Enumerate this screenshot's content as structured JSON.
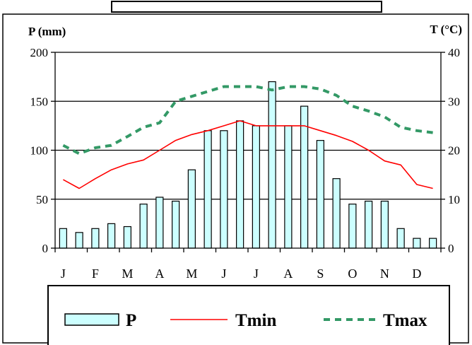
{
  "title_bar": "",
  "chart_data": {
    "type": "bar+line",
    "categories": [
      "J",
      "",
      "F",
      "",
      "M",
      "",
      "A",
      "",
      "M",
      "",
      "J",
      "",
      "J",
      "",
      "A",
      "",
      "S",
      "",
      "O",
      "",
      "N",
      "",
      "D",
      ""
    ],
    "x_tick_labels": [
      "J",
      "F",
      "M",
      "A",
      "M",
      "J",
      "J",
      "A",
      "S",
      "O",
      "N",
      "D"
    ],
    "left_axis": {
      "label": "P (mm)",
      "ylim": [
        0,
        200
      ],
      "ticks": [
        0,
        50,
        100,
        150,
        200
      ]
    },
    "right_axis": {
      "label": "T (°C)",
      "ylim": [
        0,
        40
      ],
      "ticks": [
        0,
        10,
        20,
        30,
        40
      ]
    },
    "grid": "horizontal",
    "series": [
      {
        "name": "P",
        "type": "bar",
        "axis": "left",
        "color": "#ccffff",
        "values": [
          20,
          16,
          20,
          25,
          22,
          45,
          52,
          48,
          80,
          120,
          120,
          130,
          125,
          170,
          125,
          145,
          110,
          71,
          45,
          48,
          48,
          20,
          10,
          10
        ]
      },
      {
        "name": "Tmin",
        "type": "line",
        "axis": "right",
        "color": "#ff0000",
        "values": [
          14,
          12.2,
          14.2,
          16,
          17.2,
          18,
          20,
          22,
          23.2,
          24,
          25,
          26,
          25,
          25,
          25,
          25,
          24,
          23,
          21.8,
          20,
          17.8,
          17,
          13,
          12.2
        ]
      },
      {
        "name": "Tmax",
        "type": "line",
        "axis": "right",
        "color": "#339966",
        "dash": "dashed",
        "values": [
          21,
          19.3,
          20.5,
          21,
          22.8,
          24.7,
          25.6,
          30,
          31,
          32,
          33,
          33,
          33,
          32.3,
          33,
          33,
          32.5,
          31.2,
          29,
          28,
          26.8,
          24.7,
          24,
          23.6
        ]
      }
    ],
    "legend": {
      "position": "bottom",
      "items": [
        "P",
        "Tmin",
        "Tmax"
      ]
    }
  }
}
